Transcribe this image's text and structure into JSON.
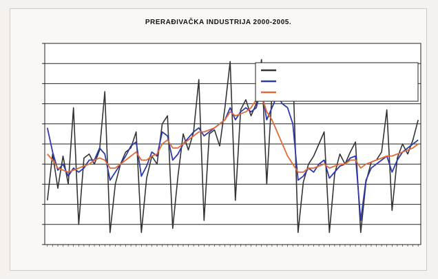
{
  "chart_data": {
    "type": "line",
    "title": "PRERAĐIVAČKA INDUSTRIJA 2000-2005.",
    "subtitle": "",
    "ylim": [
      50,
      150
    ],
    "yticks": [
      50,
      60,
      70,
      80,
      90,
      100,
      110,
      120,
      130,
      140,
      150
    ],
    "ytick_labels": [
      "",
      "",
      "",
      "",
      "",
      "",
      "",
      "",
      "",
      "",
      ""
    ],
    "grid": true,
    "legend_position": "top-right",
    "n_periods": 72,
    "x_labels": [
      "",
      "",
      "",
      "",
      "",
      "",
      "",
      "",
      "",
      "",
      "",
      "",
      "",
      "",
      "",
      "",
      "",
      "",
      "",
      "",
      "",
      "",
      "",
      "",
      "",
      "",
      "",
      "",
      "",
      "",
      "",
      "",
      "",
      "",
      "",
      "",
      "",
      "",
      "",
      "",
      "",
      "",
      "",
      "",
      "",
      "",
      "",
      "",
      "",
      "",
      "",
      "",
      "",
      "",
      "",
      "",
      "",
      "",
      "",
      "",
      "",
      "",
      "",
      "",
      "",
      "",
      "",
      "",
      "",
      "",
      "",
      ""
    ],
    "colors": [
      "#333333",
      "#2e3aa8",
      "#e06a35"
    ],
    "series": [
      {
        "name": "",
        "values": [
          72,
          95,
          78,
          94,
          80,
          118,
          60,
          93,
          95,
          90,
          97,
          126,
          56,
          80,
          90,
          96,
          98,
          106,
          56,
          83,
          94,
          90,
          110,
          114,
          58,
          84,
          105,
          97,
          106,
          132,
          62,
          105,
          107,
          99,
          118,
          141,
          72,
          117,
          122,
          114,
          120,
          142,
          80,
          125,
          135,
          128,
          136,
          137,
          56,
          81,
          90,
          94,
          100,
          106,
          56,
          85,
          95,
          90,
          96,
          101,
          56,
          81,
          91,
          92,
          96,
          117,
          67,
          93,
          100,
          95,
          102,
          112
        ]
      },
      {
        "name": "",
        "values": [
          108,
          96,
          87,
          90,
          84,
          88,
          86,
          88,
          92,
          92,
          98,
          95,
          82,
          86,
          90,
          94,
          99,
          101,
          84,
          89,
          96,
          94,
          106,
          104,
          92,
          95,
          100,
          103,
          106,
          108,
          104,
          106,
          108,
          110,
          112,
          118,
          112,
          116,
          118,
          116,
          118,
          128,
          112,
          118,
          124,
          120,
          118,
          110,
          82,
          84,
          88,
          86,
          90,
          92,
          83,
          86,
          89,
          90,
          93,
          94,
          62,
          82,
          88,
          90,
          92,
          94,
          86,
          92,
          96,
          98,
          100,
          102
        ]
      },
      {
        "name": "",
        "values": [
          95,
          92,
          88,
          87,
          86,
          87,
          88,
          89,
          90,
          92,
          93,
          92,
          88,
          88,
          90,
          92,
          94,
          96,
          92,
          92,
          94,
          95,
          100,
          102,
          98,
          98,
          100,
          102,
          104,
          106,
          106,
          107,
          108,
          110,
          112,
          116,
          114,
          115,
          116,
          118,
          122,
          124,
          116,
          112,
          106,
          100,
          94,
          90,
          86,
          86,
          88,
          88,
          89,
          90,
          88,
          89,
          90,
          90,
          92,
          92,
          88,
          90,
          91,
          92,
          93,
          94,
          94,
          95,
          96,
          97,
          98,
          100
        ]
      }
    ]
  }
}
